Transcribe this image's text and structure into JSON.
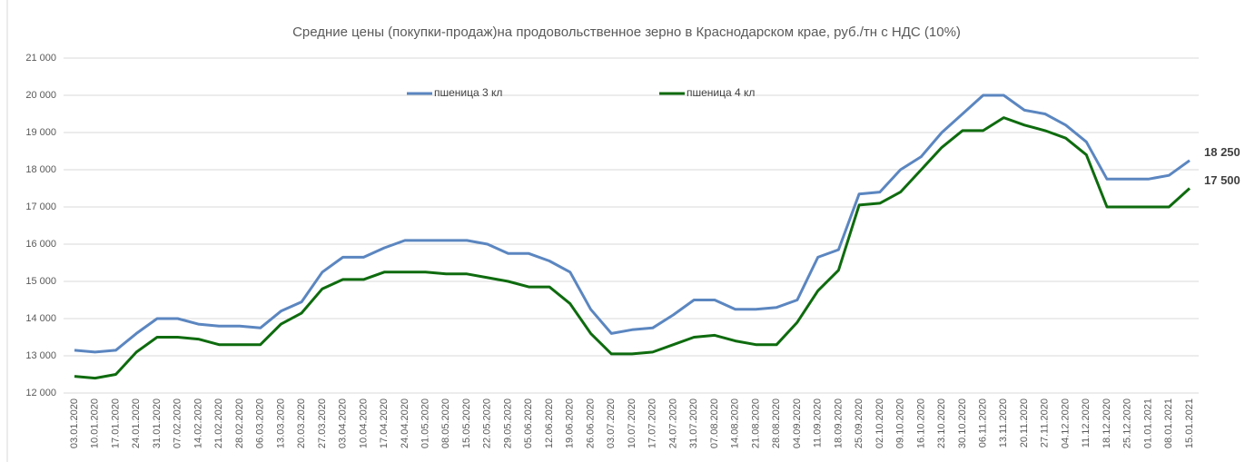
{
  "chart_data": {
    "type": "line",
    "title": "Средние цены (покупки-продаж)на продовольственное зерно в Краснодарском крае, руб./тн с НДС (10%)",
    "categories": [
      "03.01.2020",
      "10.01.2020",
      "17.01.2020",
      "24.01.2020",
      "31.01.2020",
      "07.02.2020",
      "14.02.2020",
      "21.02.2020",
      "28.02.2020",
      "06.03.2020",
      "13.03.2020",
      "20.03.2020",
      "27.03.2020",
      "03.04.2020",
      "10.04.2020",
      "17.04.2020",
      "24.04.2020",
      "01.05.2020",
      "08.05.2020",
      "15.05.2020",
      "22.05.2020",
      "29.05.2020",
      "05.06.2020",
      "12.06.2020",
      "19.06.2020",
      "26.06.2020",
      "03.07.2020",
      "10.07.2020",
      "17.07.2020",
      "24.07.2020",
      "31.07.2020",
      "07.08.2020",
      "14.08.2020",
      "21.08.2020",
      "28.08.2020",
      "04.09.2020",
      "11.09.2020",
      "18.09.2020",
      "25.09.2020",
      "02.10.2020",
      "09.10.2020",
      "16.10.2020",
      "23.10.2020",
      "30.10.2020",
      "06.11.2020",
      "13.11.2020",
      "20.11.2020",
      "27.11.2020",
      "04.12.2020",
      "11.12.2020",
      "18.12.2020",
      "25.12.2020",
      "01.01.2021",
      "08.01.2021",
      "15.01.2021"
    ],
    "series": [
      {
        "name": "пшеница 3 кл",
        "color": "#5b86c0",
        "values": [
          13150,
          13100,
          13150,
          13600,
          14000,
          14000,
          13850,
          13800,
          13800,
          13750,
          14200,
          14450,
          15250,
          15650,
          15650,
          15900,
          16100,
          16100,
          16100,
          16100,
          16000,
          15750,
          15750,
          15550,
          15250,
          14250,
          13600,
          13700,
          13750,
          14100,
          14500,
          14500,
          14250,
          14250,
          14300,
          14500,
          15650,
          15850,
          17350,
          17400,
          18000,
          18350,
          19000,
          19500,
          20000,
          20000,
          19600,
          19500,
          19200,
          18750,
          17750,
          17750,
          17750,
          17850,
          18250
        ],
        "value_labels": [
          null,
          null,
          null,
          null,
          null,
          null,
          null,
          null,
          null,
          null,
          null,
          null,
          null,
          null,
          null,
          null,
          null,
          null,
          null,
          null,
          null,
          null,
          null,
          null,
          null,
          null,
          null,
          null,
          null,
          null,
          null,
          null,
          null,
          null,
          null,
          null,
          null,
          null,
          null,
          null,
          null,
          null,
          null,
          null,
          null,
          null,
          null,
          null,
          null,
          null,
          null,
          null,
          null,
          null,
          "18 250"
        ]
      },
      {
        "name": "пшеница 4 кл",
        "color": "#0e6b0e",
        "values": [
          12450,
          12400,
          12500,
          13100,
          13500,
          13500,
          13450,
          13300,
          13300,
          13300,
          13850,
          14150,
          14800,
          15050,
          15050,
          15250,
          15250,
          15250,
          15200,
          15200,
          15100,
          15000,
          14850,
          14850,
          14400,
          13600,
          13050,
          13050,
          13100,
          13300,
          13500,
          13550,
          13400,
          13300,
          13300,
          13900,
          14750,
          15300,
          17050,
          17100,
          17400,
          18000,
          18600,
          19050,
          19050,
          19400,
          19200,
          19050,
          18850,
          18400,
          17000,
          17000,
          17000,
          17000,
          17500
        ],
        "value_labels": [
          null,
          null,
          null,
          null,
          null,
          null,
          null,
          null,
          null,
          null,
          null,
          null,
          null,
          null,
          null,
          null,
          null,
          null,
          null,
          null,
          null,
          null,
          null,
          null,
          null,
          null,
          null,
          null,
          null,
          null,
          null,
          null,
          null,
          null,
          null,
          null,
          null,
          null,
          null,
          null,
          null,
          null,
          null,
          null,
          null,
          null,
          null,
          null,
          null,
          null,
          null,
          null,
          null,
          null,
          "17 500"
        ]
      }
    ],
    "ylim": [
      12000,
      21000
    ],
    "yticks": [
      {
        "value": 12000,
        "label": "12 000"
      },
      {
        "value": 13000,
        "label": "13 000"
      },
      {
        "value": 14000,
        "label": "14 000"
      },
      {
        "value": 15000,
        "label": "15 000"
      },
      {
        "value": 16000,
        "label": "16 000"
      },
      {
        "value": 17000,
        "label": "17 000"
      },
      {
        "value": 18000,
        "label": "18 000"
      },
      {
        "value": 19000,
        "label": "19 000"
      },
      {
        "value": 20000,
        "label": "20 000"
      },
      {
        "value": 21000,
        "label": "21 000"
      }
    ],
    "grid": true
  }
}
